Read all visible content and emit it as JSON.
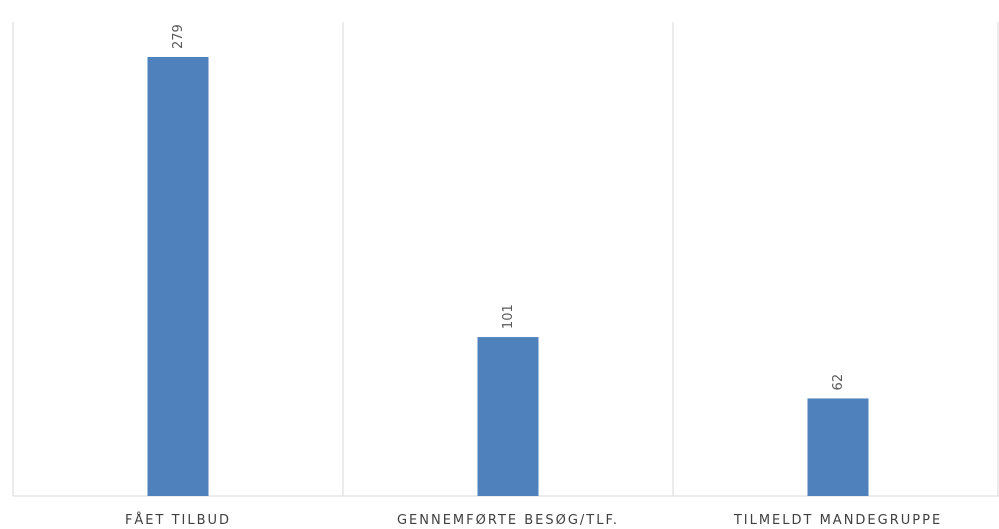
{
  "chart_data": {
    "type": "bar",
    "categories": [
      "FÅET TILBUD",
      "GENNEMFØRTE BESØG/TLF.",
      "TILMELDT MANDEGRUPPE"
    ],
    "values": [
      279,
      101,
      62
    ],
    "data_labels": [
      "279",
      "101",
      "62"
    ],
    "title": "",
    "xlabel": "",
    "ylabel": "",
    "ylim": [
      0,
      300
    ],
    "grid": "vertical-separators",
    "legend": "none",
    "colors": {
      "bar": "#4f81bd",
      "separator": "#d9d9d9",
      "baseline": "#d9d9d9",
      "category_text": "#404040",
      "data_label_text": "#595959"
    }
  }
}
